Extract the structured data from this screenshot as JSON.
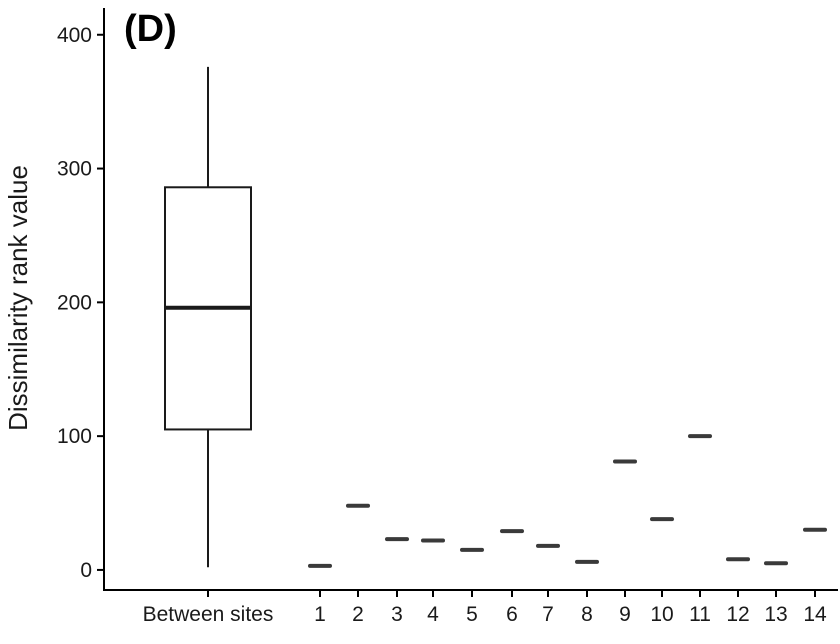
{
  "panel_label": "(D)",
  "chart_data": {
    "type": "box",
    "title": "",
    "xlabel": "",
    "ylabel": "Dissimilarity rank value",
    "ylim": [
      -15,
      420
    ],
    "yticks": [
      0,
      100,
      200,
      300,
      400
    ],
    "grid": false,
    "categories": [
      "Between sites",
      "1",
      "2",
      "3",
      "4",
      "5",
      "6",
      "7",
      "8",
      "9",
      "10",
      "11",
      "12",
      "13",
      "14"
    ],
    "box": {
      "category": "Between sites",
      "min": 2,
      "q1": 105,
      "median": 196,
      "q3": 286,
      "max": 376
    },
    "points": [
      {
        "category": "1",
        "value": 3
      },
      {
        "category": "2",
        "value": 48
      },
      {
        "category": "3",
        "value": 23
      },
      {
        "category": "4",
        "value": 22
      },
      {
        "category": "5",
        "value": 15
      },
      {
        "category": "6",
        "value": 29
      },
      {
        "category": "7",
        "value": 18
      },
      {
        "category": "8",
        "value": 6
      },
      {
        "category": "9",
        "value": 81
      },
      {
        "category": "10",
        "value": 38
      },
      {
        "category": "11",
        "value": 100
      },
      {
        "category": "12",
        "value": 8
      },
      {
        "category": "13",
        "value": 5
      },
      {
        "category": "14",
        "value": 30
      }
    ]
  }
}
